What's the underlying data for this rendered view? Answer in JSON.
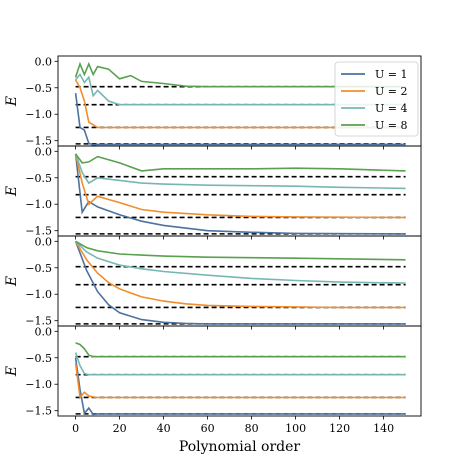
{
  "chart_data": {
    "type": "line",
    "xlabel": "Polynomial order",
    "ylabel": "E",
    "xlim": [
      -8,
      157
    ],
    "ylim": [
      -1.6,
      0.1
    ],
    "xticks": [
      0,
      20,
      40,
      60,
      80,
      100,
      120,
      140
    ],
    "yticks": [
      0.0,
      -0.5,
      -1.0,
      -1.5
    ],
    "ytick_labels": [
      "0.0",
      "−0.5",
      "−1.0",
      "−1.5"
    ],
    "grid": false,
    "legend": {
      "position": "top-right",
      "entries": [
        {
          "label": "U = 1",
          "color": "#4c72a0"
        },
        {
          "label": "U = 2",
          "color": "#f28e2b"
        },
        {
          "label": "U = 4",
          "color": "#76b7b2"
        },
        {
          "label": "U = 8",
          "color": "#59a14f"
        }
      ]
    },
    "reference_lines": [
      -0.48,
      -0.82,
      -1.25,
      -1.56
    ],
    "panels": [
      {
        "series": [
          {
            "name": "U = 1",
            "color": "#4c72a0",
            "x": [
              0,
              2,
              4,
              6,
              8,
              10,
              150
            ],
            "y": [
              -0.6,
              -1.25,
              -1.3,
              -1.55,
              -1.58,
              -1.57,
              -1.57
            ]
          },
          {
            "name": "U = 2",
            "color": "#f28e2b",
            "x": [
              0,
              2,
              4,
              6,
              8,
              10,
              150
            ],
            "y": [
              -0.35,
              -0.5,
              -0.75,
              -1.15,
              -1.2,
              -1.25,
              -1.25
            ]
          },
          {
            "name": "U = 4",
            "color": "#76b7b2",
            "x": [
              0,
              2,
              4,
              6,
              8,
              10,
              15,
              20,
              150
            ],
            "y": [
              -0.35,
              -0.25,
              -0.4,
              -0.3,
              -0.65,
              -0.55,
              -0.75,
              -0.82,
              -0.82
            ]
          },
          {
            "name": "U = 8",
            "color": "#59a14f",
            "x": [
              0,
              2,
              4,
              6,
              8,
              10,
              15,
              20,
              25,
              30,
              40,
              50,
              60,
              150
            ],
            "y": [
              -0.3,
              -0.05,
              -0.25,
              -0.05,
              -0.25,
              -0.1,
              -0.15,
              -0.33,
              -0.27,
              -0.38,
              -0.42,
              -0.47,
              -0.48,
              -0.48
            ]
          }
        ]
      },
      {
        "series": [
          {
            "name": "U = 1",
            "color": "#4c72a0",
            "x": [
              0,
              3,
              6,
              10,
              20,
              30,
              40,
              50,
              60,
              80,
              100,
              150
            ],
            "y": [
              -0.05,
              -1.15,
              -0.95,
              -1.05,
              -1.2,
              -1.32,
              -1.4,
              -1.45,
              -1.5,
              -1.53,
              -1.55,
              -1.56
            ]
          },
          {
            "name": "U = 2",
            "color": "#f28e2b",
            "x": [
              0,
              3,
              6,
              10,
              20,
              30,
              40,
              60,
              80,
              100,
              150
            ],
            "y": [
              -0.05,
              -0.6,
              -1.0,
              -0.85,
              -0.97,
              -1.1,
              -1.15,
              -1.2,
              -1.23,
              -1.24,
              -1.25
            ]
          },
          {
            "name": "U = 4",
            "color": "#76b7b2",
            "x": [
              0,
              3,
              6,
              10,
              20,
              30,
              40,
              60,
              80,
              100,
              120,
              150
            ],
            "y": [
              -0.05,
              -0.4,
              -0.6,
              -0.5,
              -0.55,
              -0.6,
              -0.62,
              -0.64,
              -0.65,
              -0.66,
              -0.68,
              -0.7
            ]
          },
          {
            "name": "U = 8",
            "color": "#59a14f",
            "x": [
              0,
              3,
              6,
              10,
              20,
              30,
              40,
              60,
              80,
              100,
              120,
              150
            ],
            "y": [
              -0.05,
              -0.22,
              -0.2,
              -0.1,
              -0.22,
              -0.37,
              -0.33,
              -0.33,
              -0.33,
              -0.32,
              -0.33,
              -0.37
            ]
          }
        ]
      },
      {
        "series": [
          {
            "name": "U = 1",
            "color": "#4c72a0",
            "x": [
              0,
              5,
              10,
              15,
              20,
              30,
              40,
              50,
              60,
              80,
              150
            ],
            "y": [
              0.0,
              -0.55,
              -0.95,
              -1.2,
              -1.35,
              -1.48,
              -1.53,
              -1.55,
              -1.56,
              -1.56,
              -1.56
            ]
          },
          {
            "name": "U = 2",
            "color": "#f28e2b",
            "x": [
              0,
              5,
              10,
              15,
              20,
              30,
              40,
              50,
              60,
              80,
              100,
              120,
              150
            ],
            "y": [
              0.0,
              -0.35,
              -0.6,
              -0.78,
              -0.9,
              -1.05,
              -1.13,
              -1.18,
              -1.21,
              -1.23,
              -1.24,
              -1.25,
              -1.25
            ]
          },
          {
            "name": "U = 4",
            "color": "#76b7b2",
            "x": [
              0,
              5,
              10,
              20,
              30,
              40,
              60,
              80,
              100,
              120,
              150
            ],
            "y": [
              0.0,
              -0.2,
              -0.32,
              -0.45,
              -0.52,
              -0.57,
              -0.64,
              -0.7,
              -0.74,
              -0.77,
              -0.79
            ]
          },
          {
            "name": "U = 8",
            "color": "#59a14f",
            "x": [
              0,
              5,
              10,
              20,
              30,
              40,
              60,
              80,
              100,
              120,
              150
            ],
            "y": [
              0.0,
              -0.12,
              -0.18,
              -0.24,
              -0.26,
              -0.28,
              -0.3,
              -0.31,
              -0.32,
              -0.33,
              -0.35
            ]
          }
        ]
      },
      {
        "series": [
          {
            "name": "U = 1",
            "color": "#4c72a0",
            "x": [
              0,
              2,
              4,
              6,
              8,
              10,
              150
            ],
            "y": [
              -0.5,
              -1.1,
              -1.55,
              -1.45,
              -1.57,
              -1.56,
              -1.56
            ]
          },
          {
            "name": "U = 2",
            "color": "#f28e2b",
            "x": [
              0,
              2,
              4,
              6,
              8,
              10,
              150
            ],
            "y": [
              -0.6,
              -1.25,
              -1.15,
              -1.22,
              -1.24,
              -1.25,
              -1.25
            ]
          },
          {
            "name": "U = 4",
            "color": "#76b7b2",
            "x": [
              0,
              2,
              4,
              6,
              8,
              10,
              150
            ],
            "y": [
              -0.4,
              -0.65,
              -0.8,
              -0.82,
              -0.82,
              -0.82,
              -0.82
            ]
          },
          {
            "name": "U = 8",
            "color": "#59a14f",
            "x": [
              0,
              2,
              4,
              6,
              8,
              150
            ],
            "y": [
              -0.22,
              -0.25,
              -0.33,
              -0.45,
              -0.48,
              -0.48
            ]
          }
        ]
      }
    ]
  }
}
